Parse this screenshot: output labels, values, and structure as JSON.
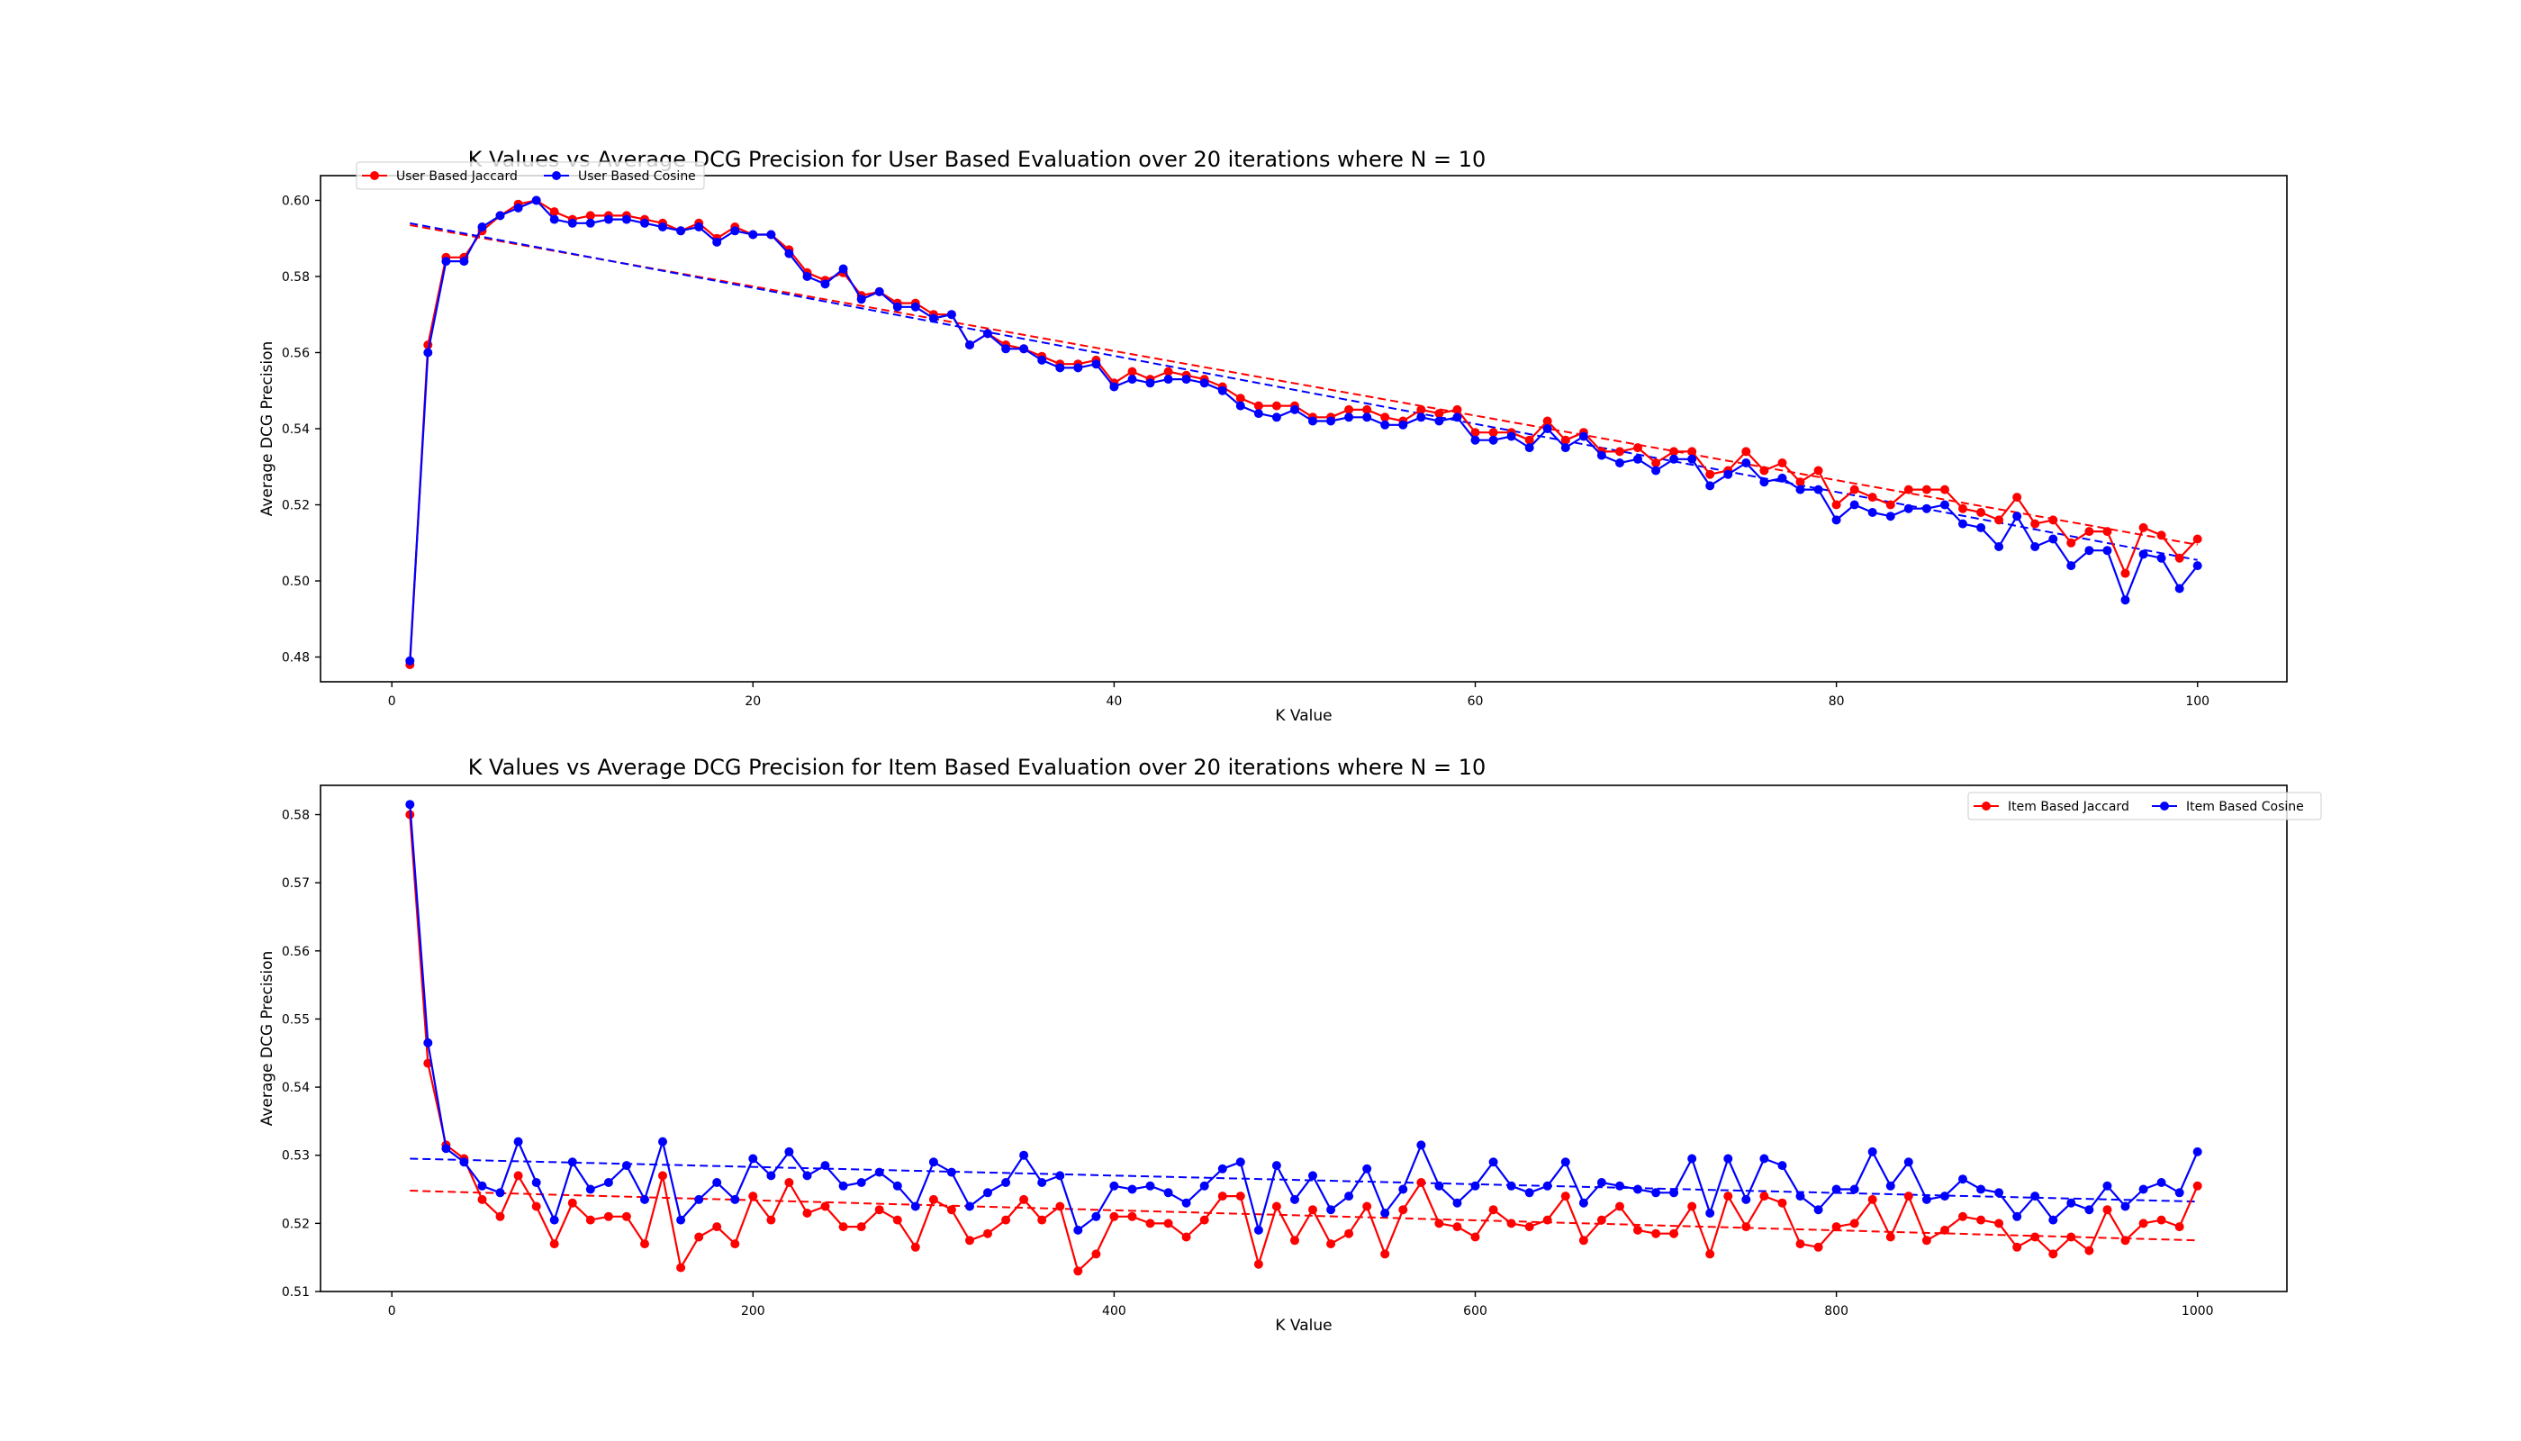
{
  "colors": {
    "jaccard": "#ff0000",
    "cosine": "#0000ff",
    "axes": "#000000",
    "background": "#ffffff"
  },
  "chart_data": [
    {
      "type": "line",
      "title": "K Values vs Average DCG Precision for User Based Evaluation over 20 iterations where N = 10",
      "xlabel": "K Value",
      "ylabel": "Average DCG Precision",
      "xlim": [
        -3.95,
        104.95
      ],
      "ylim": [
        0.4735,
        0.6065
      ],
      "xticks": [
        0,
        20,
        40,
        60,
        80,
        100
      ],
      "xtick_labels": [
        "0",
        "20",
        "40",
        "60",
        "80",
        "100"
      ],
      "yticks": [
        0.48,
        0.5,
        0.52,
        0.54,
        0.56,
        0.58,
        0.6
      ],
      "ytick_labels": [
        "0.48",
        "0.50",
        "0.52",
        "0.54",
        "0.56",
        "0.58",
        "0.60"
      ],
      "legend_position": "top-left",
      "grid": false,
      "x": [
        1,
        2,
        3,
        4,
        5,
        6,
        7,
        8,
        9,
        10,
        11,
        12,
        13,
        14,
        15,
        16,
        17,
        18,
        19,
        20,
        21,
        22,
        23,
        24,
        25,
        26,
        27,
        28,
        29,
        30,
        31,
        32,
        33,
        34,
        35,
        36,
        37,
        38,
        39,
        40,
        41,
        42,
        43,
        44,
        45,
        46,
        47,
        48,
        49,
        50,
        51,
        52,
        53,
        54,
        55,
        56,
        57,
        58,
        59,
        60,
        61,
        62,
        63,
        64,
        65,
        66,
        67,
        68,
        69,
        70,
        71,
        72,
        73,
        74,
        75,
        76,
        77,
        78,
        79,
        80,
        81,
        82,
        83,
        84,
        85,
        86,
        87,
        88,
        89,
        90,
        91,
        92,
        93,
        94,
        95,
        96,
        97,
        98,
        99,
        100
      ],
      "series": [
        {
          "name": "User Based Jaccard",
          "color": "#ff0000",
          "values": [
            0.478,
            0.562,
            0.585,
            0.585,
            0.592,
            0.596,
            0.599,
            0.6,
            0.597,
            0.595,
            0.596,
            0.596,
            0.596,
            0.595,
            0.594,
            0.592,
            0.594,
            0.59,
            0.593,
            0.591,
            0.591,
            0.587,
            0.581,
            0.579,
            0.581,
            0.575,
            0.576,
            0.573,
            0.573,
            0.57,
            0.57,
            0.562,
            0.565,
            0.562,
            0.561,
            0.559,
            0.557,
            0.557,
            0.558,
            0.552,
            0.555,
            0.553,
            0.555,
            0.554,
            0.553,
            0.551,
            0.548,
            0.546,
            0.546,
            0.546,
            0.543,
            0.543,
            0.545,
            0.545,
            0.543,
            0.542,
            0.545,
            0.544,
            0.545,
            0.539,
            0.539,
            0.539,
            0.537,
            0.542,
            0.537,
            0.539,
            0.534,
            0.534,
            0.535,
            0.531,
            0.534,
            0.534,
            0.528,
            0.529,
            0.534,
            0.529,
            0.531,
            0.526,
            0.529,
            0.52,
            0.524,
            0.522,
            0.52,
            0.524,
            0.524,
            0.524,
            0.519,
            0.518,
            0.516,
            0.522,
            0.515,
            0.516,
            0.51,
            0.513,
            0.513,
            0.502,
            0.514,
            0.512,
            0.506,
            0.511
          ]
        },
        {
          "name": "User Based Cosine",
          "color": "#0000ff",
          "values": [
            0.479,
            0.56,
            0.584,
            0.584,
            0.593,
            0.596,
            0.598,
            0.6,
            0.595,
            0.594,
            0.594,
            0.595,
            0.595,
            0.594,
            0.593,
            0.592,
            0.593,
            0.589,
            0.592,
            0.591,
            0.591,
            0.586,
            0.58,
            0.578,
            0.582,
            0.574,
            0.576,
            0.572,
            0.572,
            0.569,
            0.57,
            0.562,
            0.565,
            0.561,
            0.561,
            0.558,
            0.556,
            0.556,
            0.557,
            0.551,
            0.553,
            0.552,
            0.553,
            0.553,
            0.552,
            0.55,
            0.546,
            0.544,
            0.543,
            0.545,
            0.542,
            0.542,
            0.543,
            0.543,
            0.541,
            0.541,
            0.543,
            0.542,
            0.543,
            0.537,
            0.537,
            0.538,
            0.535,
            0.54,
            0.535,
            0.538,
            0.533,
            0.531,
            0.532,
            0.529,
            0.532,
            0.532,
            0.525,
            0.528,
            0.531,
            0.526,
            0.527,
            0.524,
            0.524,
            0.516,
            0.52,
            0.518,
            0.517,
            0.519,
            0.519,
            0.52,
            0.515,
            0.514,
            0.509,
            0.517,
            0.509,
            0.511,
            0.504,
            0.508,
            0.508,
            0.495,
            0.507,
            0.506,
            0.498,
            0.504
          ]
        }
      ],
      "trendlines": [
        {
          "series": "User Based Jaccard",
          "color": "#ff0000",
          "x": [
            1,
            100
          ],
          "y": [
            0.5935,
            0.5095
          ]
        },
        {
          "series": "User Based Cosine",
          "color": "#0000ff",
          "x": [
            1,
            100
          ],
          "y": [
            0.594,
            0.5055
          ]
        }
      ]
    },
    {
      "type": "line",
      "title": "K Values vs Average DCG Precision for Item Based Evaluation over 20 iterations where N = 10",
      "xlabel": "K Value",
      "ylabel": "Average DCG Precision",
      "xlim": [
        -39.5,
        1049.5
      ],
      "ylim": [
        0.51,
        0.5843
      ],
      "xticks": [
        0,
        200,
        400,
        600,
        800,
        1000
      ],
      "xtick_labels": [
        "0",
        "200",
        "400",
        "600",
        "800",
        "1000"
      ],
      "yticks": [
        0.51,
        0.52,
        0.53,
        0.54,
        0.55,
        0.56,
        0.57,
        0.58
      ],
      "ytick_labels": [
        "0.51",
        "0.52",
        "0.53",
        "0.54",
        "0.55",
        "0.56",
        "0.57",
        "0.58"
      ],
      "legend_position": "top-right",
      "grid": false,
      "x": [
        10,
        20,
        30,
        40,
        50,
        60,
        70,
        80,
        90,
        100,
        110,
        120,
        130,
        140,
        150,
        160,
        170,
        180,
        190,
        200,
        210,
        220,
        230,
        240,
        250,
        260,
        270,
        280,
        290,
        300,
        310,
        320,
        330,
        340,
        350,
        360,
        370,
        380,
        390,
        400,
        410,
        420,
        430,
        440,
        450,
        460,
        470,
        480,
        490,
        500,
        510,
        520,
        530,
        540,
        550,
        560,
        570,
        580,
        590,
        600,
        610,
        620,
        630,
        640,
        650,
        660,
        670,
        680,
        690,
        700,
        710,
        720,
        730,
        740,
        750,
        760,
        770,
        780,
        790,
        800,
        810,
        820,
        830,
        840,
        850,
        860,
        870,
        880,
        890,
        900,
        910,
        920,
        930,
        940,
        950,
        960,
        970,
        980,
        990,
        1000
      ],
      "series": [
        {
          "name": "Item Based Jaccard",
          "color": "#ff0000",
          "values": [
            0.58,
            0.5435,
            0.5315,
            0.5295,
            0.5235,
            0.521,
            0.527,
            0.5225,
            0.517,
            0.523,
            0.5205,
            0.521,
            0.521,
            0.517,
            0.527,
            0.5135,
            0.518,
            0.5195,
            0.517,
            0.524,
            0.5205,
            0.526,
            0.5215,
            0.5225,
            0.5195,
            0.5195,
            0.522,
            0.5205,
            0.5165,
            0.5235,
            0.522,
            0.5175,
            0.5185,
            0.5205,
            0.5235,
            0.5205,
            0.5225,
            0.513,
            0.5155,
            0.521,
            0.521,
            0.52,
            0.52,
            0.518,
            0.5205,
            0.524,
            0.524,
            0.514,
            0.5225,
            0.5175,
            0.522,
            0.517,
            0.5185,
            0.5225,
            0.5155,
            0.522,
            0.526,
            0.52,
            0.5195,
            0.518,
            0.522,
            0.52,
            0.5195,
            0.5205,
            0.524,
            0.5175,
            0.5205,
            0.5225,
            0.519,
            0.5185,
            0.5185,
            0.5225,
            0.5155,
            0.524,
            0.5195,
            0.524,
            0.523,
            0.517,
            0.5165,
            0.5195,
            0.52,
            0.5235,
            0.518,
            0.524,
            0.5175,
            0.519,
            0.521,
            0.5205,
            0.52,
            0.5165,
            0.518,
            0.5155,
            0.518,
            0.516,
            0.522,
            0.5175,
            0.52,
            0.5205,
            0.5195,
            0.5255
          ]
        },
        {
          "name": "Item Based Cosine",
          "color": "#0000ff",
          "values": [
            0.5815,
            0.5465,
            0.531,
            0.529,
            0.5255,
            0.5245,
            0.532,
            0.526,
            0.5205,
            0.529,
            0.525,
            0.526,
            0.5285,
            0.5235,
            0.532,
            0.5205,
            0.5235,
            0.526,
            0.5235,
            0.5295,
            0.527,
            0.5305,
            0.527,
            0.5285,
            0.5255,
            0.526,
            0.5275,
            0.5255,
            0.5225,
            0.529,
            0.5275,
            0.5225,
            0.5245,
            0.526,
            0.53,
            0.526,
            0.527,
            0.519,
            0.521,
            0.5255,
            0.525,
            0.5255,
            0.5245,
            0.523,
            0.5255,
            0.528,
            0.529,
            0.519,
            0.5285,
            0.5235,
            0.527,
            0.522,
            0.524,
            0.528,
            0.5215,
            0.525,
            0.5315,
            0.5255,
            0.523,
            0.5255,
            0.529,
            0.5255,
            0.5245,
            0.5255,
            0.529,
            0.523,
            0.526,
            0.5255,
            0.525,
            0.5245,
            0.5245,
            0.5295,
            0.5215,
            0.5295,
            0.5235,
            0.5295,
            0.5285,
            0.524,
            0.522,
            0.525,
            0.525,
            0.5305,
            0.5255,
            0.529,
            0.5235,
            0.524,
            0.5265,
            0.525,
            0.5245,
            0.521,
            0.524,
            0.5205,
            0.523,
            0.522,
            0.5255,
            0.5225,
            0.525,
            0.526,
            0.5245,
            0.5305
          ]
        }
      ],
      "trendlines": [
        {
          "series": "Item Based Jaccard",
          "color": "#ff0000",
          "x": [
            10,
            1000
          ],
          "y": [
            0.5248,
            0.5175
          ]
        },
        {
          "series": "Item Based Cosine",
          "color": "#0000ff",
          "x": [
            10,
            1000
          ],
          "y": [
            0.5295,
            0.5232
          ]
        }
      ]
    }
  ]
}
